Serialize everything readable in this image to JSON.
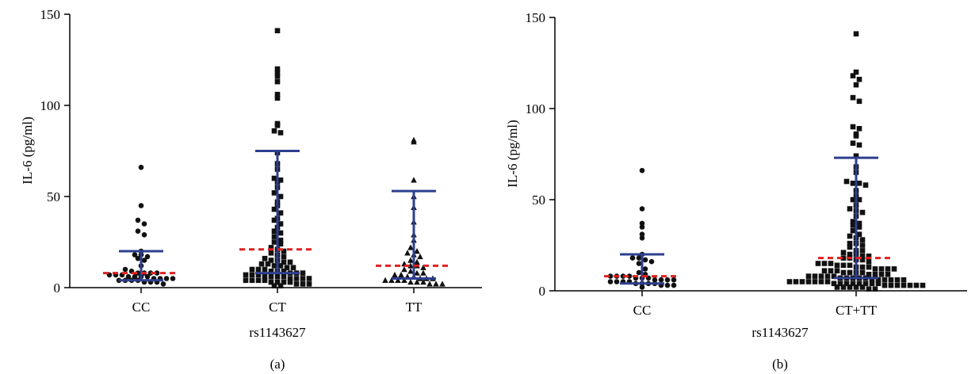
{
  "chart_data": [
    {
      "type": "scatter",
      "panel_label": "(a)",
      "xlabel": "rs1143627",
      "ylabel": "IL-6 (pg/ml)",
      "ylim": [
        0,
        150
      ],
      "yticks": [
        "0",
        "50",
        "100",
        "150"
      ],
      "categories": [
        "CC",
        "CT",
        "TT"
      ],
      "marker_colors": {
        "points": "#111111",
        "median": "#e02020",
        "iqr": "#2d3f8f"
      },
      "groups": [
        {
          "category": "CC",
          "marker": "circle",
          "median": 8,
          "iqr": [
            4,
            20
          ],
          "values": [
            66,
            45,
            37,
            35,
            31,
            29,
            20,
            18,
            18,
            17,
            16,
            15,
            12,
            10,
            9,
            8,
            8,
            8,
            8,
            7,
            7,
            7,
            6,
            6,
            6,
            6,
            5,
            5,
            5,
            5,
            4,
            4,
            4,
            4,
            3,
            3,
            3,
            2
          ]
        },
        {
          "category": "CT",
          "marker": "square",
          "median": 21,
          "iqr": [
            8,
            75
          ],
          "values": [
            141,
            120,
            118,
            116,
            113,
            106,
            104,
            90,
            89,
            86,
            85,
            74,
            68,
            65,
            60,
            59,
            58,
            55,
            52,
            50,
            47,
            45,
            43,
            41,
            38,
            37,
            35,
            33,
            31,
            30,
            28,
            26,
            25,
            24,
            22,
            21,
            20,
            19,
            18,
            17,
            16,
            15,
            15,
            14,
            14,
            13,
            13,
            12,
            12,
            11,
            11,
            10,
            10,
            10,
            9,
            9,
            9,
            8,
            8,
            8,
            7,
            7,
            7,
            6,
            6,
            6,
            6,
            5,
            5,
            5,
            5,
            4,
            4,
            4,
            4,
            3,
            3,
            3,
            3,
            2,
            2,
            2,
            1,
            1
          ]
        },
        {
          "category": "TT",
          "marker": "triangle",
          "median": 12,
          "iqr": [
            5,
            53
          ],
          "values": [
            81,
            80,
            59,
            50,
            44,
            36,
            29,
            26,
            22,
            20,
            19,
            18,
            17,
            15,
            14,
            13,
            12,
            12,
            11,
            10,
            9,
            8,
            8,
            7,
            7,
            6,
            6,
            5,
            5,
            5,
            4,
            4,
            4,
            4,
            3,
            3,
            3,
            2,
            2,
            2
          ]
        }
      ]
    },
    {
      "type": "scatter",
      "panel_label": "(b)",
      "xlabel": "rs1143627",
      "ylabel": "IL-6 (pg/ml)",
      "ylim": [
        0,
        150
      ],
      "yticks": [
        "0",
        "50",
        "100",
        "150"
      ],
      "categories": [
        "CC",
        "CT+TT"
      ],
      "marker_colors": {
        "points": "#111111",
        "median": "#e02020",
        "iqr": "#2d3f8f"
      },
      "groups": [
        {
          "category": "CC",
          "marker": "circle",
          "median": 8,
          "iqr": [
            4,
            20
          ],
          "values": [
            66,
            45,
            37,
            35,
            31,
            29,
            20,
            18,
            18,
            17,
            16,
            15,
            12,
            10,
            9,
            8,
            8,
            8,
            8,
            7,
            7,
            7,
            6,
            6,
            6,
            6,
            5,
            5,
            5,
            5,
            4,
            4,
            4,
            4,
            3,
            3,
            3,
            2
          ]
        },
        {
          "category": "CT+TT",
          "marker": "square",
          "median": 18,
          "iqr": [
            7,
            73
          ],
          "values": [
            141,
            120,
            118,
            116,
            113,
            106,
            104,
            90,
            89,
            86,
            85,
            81,
            80,
            74,
            68,
            65,
            60,
            59,
            59,
            58,
            55,
            52,
            50,
            50,
            47,
            45,
            44,
            43,
            41,
            38,
            37,
            36,
            35,
            33,
            31,
            30,
            29,
            28,
            26,
            26,
            25,
            24,
            22,
            22,
            21,
            20,
            20,
            19,
            19,
            18,
            18,
            17,
            17,
            16,
            15,
            15,
            15,
            14,
            14,
            14,
            13,
            13,
            13,
            12,
            12,
            12,
            12,
            11,
            11,
            11,
            10,
            10,
            10,
            10,
            9,
            9,
            9,
            9,
            8,
            8,
            8,
            8,
            8,
            7,
            7,
            7,
            7,
            7,
            6,
            6,
            6,
            6,
            6,
            6,
            5,
            5,
            5,
            5,
            5,
            5,
            5,
            4,
            4,
            4,
            4,
            4,
            4,
            4,
            4,
            3,
            3,
            3,
            3,
            3,
            3,
            3,
            2,
            2,
            2,
            2,
            2,
            1,
            1
          ]
        }
      ]
    }
  ]
}
